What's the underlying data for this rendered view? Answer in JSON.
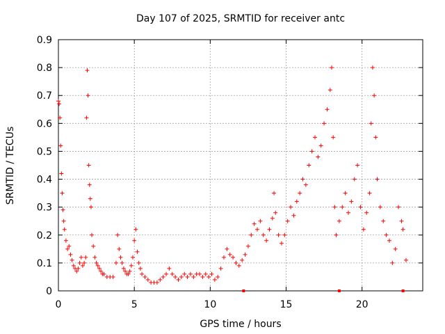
{
  "chart_data": {
    "type": "scatter",
    "title": "Day 107 of 2025, SRMTID for receiver antc",
    "xlabel": "GPS time / hours",
    "ylabel": "SRMTID / TECUs",
    "xlim": [
      0,
      24
    ],
    "ylim": [
      0,
      0.9
    ],
    "xticks": [
      0,
      5,
      10,
      15,
      20
    ],
    "yticks": [
      0,
      0.1,
      0.2,
      0.3,
      0.4,
      0.5,
      0.6,
      0.7,
      0.8,
      0.9
    ],
    "grid": true,
    "marker": "plus",
    "color": "#ff0000",
    "axis_markers_x": [
      12.2,
      18.5,
      22.7
    ],
    "series": [
      {
        "name": "SRMTID",
        "points": [
          [
            0.0,
            0.68
          ],
          [
            0.05,
            0.67
          ],
          [
            0.1,
            0.62
          ],
          [
            0.15,
            0.52
          ],
          [
            0.2,
            0.42
          ],
          [
            0.25,
            0.35
          ],
          [
            0.3,
            0.29
          ],
          [
            0.35,
            0.25
          ],
          [
            0.4,
            0.22
          ],
          [
            0.5,
            0.18
          ],
          [
            0.6,
            0.15
          ],
          [
            0.7,
            0.16
          ],
          [
            0.8,
            0.13
          ],
          [
            0.9,
            0.11
          ],
          [
            1.0,
            0.09
          ],
          [
            1.1,
            0.08
          ],
          [
            1.2,
            0.07
          ],
          [
            1.3,
            0.08
          ],
          [
            1.4,
            0.1
          ],
          [
            1.5,
            0.12
          ],
          [
            1.6,
            0.09
          ],
          [
            1.7,
            0.1
          ],
          [
            1.8,
            0.12
          ],
          [
            1.85,
            0.62
          ],
          [
            1.9,
            0.79
          ],
          [
            1.95,
            0.7
          ],
          [
            2.0,
            0.45
          ],
          [
            2.05,
            0.38
          ],
          [
            2.1,
            0.33
          ],
          [
            2.15,
            0.3
          ],
          [
            2.2,
            0.2
          ],
          [
            2.3,
            0.16
          ],
          [
            2.4,
            0.12
          ],
          [
            2.5,
            0.1
          ],
          [
            2.6,
            0.09
          ],
          [
            2.7,
            0.08
          ],
          [
            2.8,
            0.07
          ],
          [
            2.9,
            0.06
          ],
          [
            3.0,
            0.06
          ],
          [
            3.2,
            0.05
          ],
          [
            3.4,
            0.05
          ],
          [
            3.6,
            0.05
          ],
          [
            3.8,
            0.1
          ],
          [
            3.9,
            0.2
          ],
          [
            4.0,
            0.15
          ],
          [
            4.1,
            0.12
          ],
          [
            4.2,
            0.1
          ],
          [
            4.3,
            0.08
          ],
          [
            4.4,
            0.07
          ],
          [
            4.5,
            0.06
          ],
          [
            4.6,
            0.06
          ],
          [
            4.7,
            0.07
          ],
          [
            4.8,
            0.09
          ],
          [
            4.9,
            0.12
          ],
          [
            5.0,
            0.18
          ],
          [
            5.1,
            0.22
          ],
          [
            5.2,
            0.14
          ],
          [
            5.3,
            0.1
          ],
          [
            5.4,
            0.08
          ],
          [
            5.5,
            0.06
          ],
          [
            5.7,
            0.05
          ],
          [
            5.9,
            0.04
          ],
          [
            6.1,
            0.03
          ],
          [
            6.3,
            0.03
          ],
          [
            6.5,
            0.03
          ],
          [
            6.7,
            0.04
          ],
          [
            6.9,
            0.05
          ],
          [
            7.1,
            0.06
          ],
          [
            7.3,
            0.08
          ],
          [
            7.5,
            0.06
          ],
          [
            7.7,
            0.05
          ],
          [
            7.9,
            0.04
          ],
          [
            8.1,
            0.05
          ],
          [
            8.3,
            0.06
          ],
          [
            8.5,
            0.05
          ],
          [
            8.7,
            0.06
          ],
          [
            8.9,
            0.05
          ],
          [
            9.1,
            0.06
          ],
          [
            9.3,
            0.06
          ],
          [
            9.5,
            0.05
          ],
          [
            9.7,
            0.06
          ],
          [
            9.9,
            0.05
          ],
          [
            10.1,
            0.06
          ],
          [
            10.3,
            0.04
          ],
          [
            10.5,
            0.05
          ],
          [
            10.7,
            0.08
          ],
          [
            10.9,
            0.12
          ],
          [
            11.1,
            0.15
          ],
          [
            11.3,
            0.13
          ],
          [
            11.5,
            0.12
          ],
          [
            11.7,
            0.1
          ],
          [
            11.9,
            0.09
          ],
          [
            12.1,
            0.11
          ],
          [
            12.3,
            0.13
          ],
          [
            12.5,
            0.16
          ],
          [
            12.7,
            0.2
          ],
          [
            12.9,
            0.24
          ],
          [
            13.1,
            0.22
          ],
          [
            13.3,
            0.25
          ],
          [
            13.5,
            0.2
          ],
          [
            13.7,
            0.18
          ],
          [
            13.9,
            0.22
          ],
          [
            14.1,
            0.26
          ],
          [
            14.2,
            0.35
          ],
          [
            14.3,
            0.28
          ],
          [
            14.5,
            0.2
          ],
          [
            14.7,
            0.17
          ],
          [
            14.9,
            0.2
          ],
          [
            15.1,
            0.25
          ],
          [
            15.3,
            0.3
          ],
          [
            15.5,
            0.27
          ],
          [
            15.7,
            0.32
          ],
          [
            15.9,
            0.35
          ],
          [
            16.1,
            0.4
          ],
          [
            16.3,
            0.38
          ],
          [
            16.5,
            0.45
          ],
          [
            16.7,
            0.5
          ],
          [
            16.9,
            0.55
          ],
          [
            17.1,
            0.48
          ],
          [
            17.3,
            0.52
          ],
          [
            17.5,
            0.6
          ],
          [
            17.7,
            0.65
          ],
          [
            17.9,
            0.72
          ],
          [
            18.0,
            0.8
          ],
          [
            18.1,
            0.55
          ],
          [
            18.2,
            0.3
          ],
          [
            18.3,
            0.2
          ],
          [
            18.5,
            0.25
          ],
          [
            18.7,
            0.3
          ],
          [
            18.9,
            0.35
          ],
          [
            19.1,
            0.28
          ],
          [
            19.3,
            0.32
          ],
          [
            19.5,
            0.4
          ],
          [
            19.7,
            0.45
          ],
          [
            19.9,
            0.3
          ],
          [
            20.1,
            0.22
          ],
          [
            20.3,
            0.28
          ],
          [
            20.5,
            0.35
          ],
          [
            20.6,
            0.6
          ],
          [
            20.7,
            0.8
          ],
          [
            20.8,
            0.7
          ],
          [
            20.9,
            0.55
          ],
          [
            21.0,
            0.4
          ],
          [
            21.2,
            0.3
          ],
          [
            21.4,
            0.25
          ],
          [
            21.6,
            0.2
          ],
          [
            21.8,
            0.18
          ],
          [
            22.0,
            0.1
          ],
          [
            22.2,
            0.15
          ],
          [
            22.4,
            0.3
          ],
          [
            22.6,
            0.25
          ],
          [
            22.7,
            0.22
          ],
          [
            22.9,
            0.11
          ]
        ]
      }
    ]
  }
}
